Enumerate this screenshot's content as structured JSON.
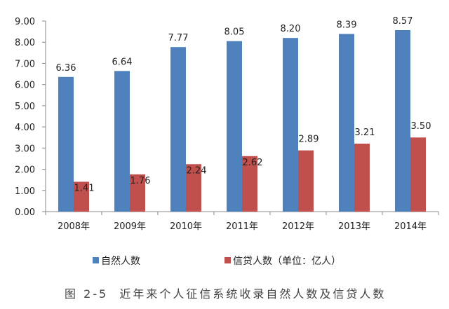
{
  "chart_data": {
    "type": "bar",
    "categories": [
      "2008年",
      "2009年",
      "2010年",
      "2011年",
      "2012年",
      "2013年",
      "2014年"
    ],
    "series": [
      {
        "name": "自然人数",
        "values": [
          6.36,
          6.64,
          7.77,
          8.05,
          8.2,
          8.39,
          8.57
        ],
        "color": "#4f81bd"
      },
      {
        "name": "信贷人数（单位：亿人）",
        "values": [
          1.41,
          1.76,
          2.24,
          2.62,
          2.89,
          3.21,
          3.5
        ],
        "color": "#c0504d"
      }
    ],
    "ylim": [
      0,
      9
    ],
    "yticks": [
      "0.00",
      "1.00",
      "2.00",
      "3.00",
      "4.00",
      "5.00",
      "6.00",
      "7.00",
      "8.00",
      "9.00"
    ],
    "grid": false,
    "legend": "bottom",
    "caption": "图 2-5  近年来个人征信系统收录自然人数及信贷人数"
  }
}
